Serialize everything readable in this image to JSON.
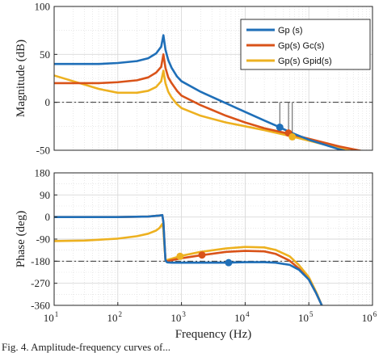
{
  "caption_fragment": "Fig. 4. Amplitude-frequency curves of...",
  "colors": {
    "gp": "#1f6fb8",
    "gpgc": "#d95319",
    "gppid": "#edb120",
    "grid": "#d9d9d9",
    "refline": "#333333"
  },
  "chart_data": [
    {
      "type": "line",
      "xscale": "log",
      "xlim": [
        10,
        1000000
      ],
      "ylim": [
        -50,
        100
      ],
      "ylabel": "Magnitude (dB)",
      "yticks": [
        -50,
        0,
        50,
        100
      ],
      "ytick_labels": [
        "-50",
        "0",
        "50",
        "100"
      ],
      "reference_line_y": 0,
      "grid": true,
      "legend_position": "top-right",
      "series": [
        {
          "name": "Gp (s)",
          "color_key": "gp",
          "x": [
            10,
            50,
            100,
            200,
            300,
            400,
            480,
            520,
            560,
            620,
            700,
            850,
            1000,
            2000,
            5000,
            10000,
            20000,
            35000,
            50000,
            100000,
            300000,
            1000000
          ],
          "y": [
            40,
            40,
            41,
            43,
            46,
            51,
            58,
            70,
            55,
            44,
            36,
            27,
            22,
            11,
            -1,
            -10,
            -19,
            -26,
            -31,
            -39,
            -49,
            -58
          ]
        },
        {
          "name": "Gp(s) Gc(s)",
          "color_key": "gpgc",
          "x": [
            10,
            50,
            100,
            200,
            300,
            400,
            480,
            520,
            560,
            620,
            700,
            850,
            1000,
            2000,
            5000,
            10000,
            20000,
            50000,
            100000,
            300000,
            1000000
          ],
          "y": [
            20,
            20,
            21,
            23,
            26,
            31,
            37,
            50,
            36,
            26,
            20,
            12,
            7,
            -3,
            -14,
            -21,
            -27,
            -33,
            -38,
            -46,
            -53
          ]
        },
        {
          "name": "Gp(s) Gpid(s)",
          "color_key": "gppid",
          "x": [
            10,
            20,
            50,
            100,
            200,
            300,
            400,
            480,
            520,
            560,
            620,
            700,
            850,
            1000,
            2000,
            5000,
            10000,
            20000,
            50000,
            100000,
            300000,
            1000000
          ],
          "y": [
            28,
            22,
            14,
            10,
            10,
            12,
            16,
            22,
            33,
            20,
            11,
            5,
            -2,
            -6,
            -14,
            -21,
            -25,
            -29,
            -35,
            -40,
            -48,
            -56
          ]
        }
      ],
      "markers": [
        {
          "series_color_key": "gp",
          "x": 35000,
          "y": -26
        },
        {
          "series_color_key": "gpgc",
          "x": 48000,
          "y": -32
        },
        {
          "series_color_key": "gppid",
          "x": 55000,
          "y": -36
        }
      ]
    },
    {
      "type": "line",
      "xscale": "log",
      "xlim": [
        10,
        1000000
      ],
      "ylim": [
        -360,
        180
      ],
      "xlabel": "Frequency (Hz)",
      "ylabel": "Phase (deg)",
      "yticks": [
        -360,
        -270,
        -180,
        -90,
        0,
        90,
        180
      ],
      "ytick_labels": [
        "-360",
        "-270",
        "-180",
        "-90",
        "0",
        "90",
        "180"
      ],
      "xticks": [
        10,
        100,
        1000,
        10000,
        100000,
        1000000
      ],
      "xtick_labels": [
        {
          "base": "10",
          "exp": "1"
        },
        {
          "base": "10",
          "exp": "2"
        },
        {
          "base": "10",
          "exp": "3"
        },
        {
          "base": "10",
          "exp": "4"
        },
        {
          "base": "10",
          "exp": "5"
        },
        {
          "base": "10",
          "exp": "6"
        }
      ],
      "reference_line_y": -180,
      "grid": true,
      "series": [
        {
          "name": "Gp (s)",
          "color_key": "gp",
          "x": [
            10,
            100,
            300,
            450,
            500,
            520,
            540,
            560,
            580,
            600,
            700,
            1000,
            2000,
            5000,
            10000,
            20000,
            30000,
            50000,
            70000,
            100000,
            130000,
            160000
          ],
          "y": [
            0,
            0,
            2,
            6,
            8,
            -20,
            -100,
            -175,
            -182,
            -185,
            -186,
            -186,
            -186,
            -186,
            -184,
            -184,
            -186,
            -195,
            -215,
            -255,
            -310,
            -360
          ]
        },
        {
          "name": "Gp(s) Gc(s)",
          "color_key": "gpgc",
          "x": [
            10,
            100,
            300,
            450,
            500,
            520,
            540,
            560,
            580,
            600,
            700,
            1000,
            2000,
            5000,
            10000,
            20000,
            30000,
            50000,
            70000,
            100000,
            130000,
            160000
          ],
          "y": [
            0,
            0,
            2,
            6,
            8,
            -20,
            -100,
            -175,
            -180,
            -180,
            -176,
            -168,
            -156,
            -142,
            -138,
            -140,
            -150,
            -178,
            -210,
            -255,
            -310,
            -360
          ]
        },
        {
          "name": "Gp(s) Gpid(s)",
          "color_key": "gppid",
          "x": [
            10,
            30,
            100,
            200,
            300,
            400,
            450,
            480,
            500,
            520,
            540,
            560,
            580,
            600,
            700,
            1000,
            2000,
            5000,
            10000,
            20000,
            30000,
            50000,
            70000,
            100000,
            130000,
            160000
          ],
          "y": [
            -98,
            -96,
            -88,
            -78,
            -68,
            -55,
            -45,
            -35,
            -28,
            -50,
            -120,
            -172,
            -175,
            -175,
            -170,
            -158,
            -142,
            -128,
            -122,
            -124,
            -134,
            -160,
            -196,
            -245,
            -305,
            -360
          ]
        }
      ],
      "markers": [
        {
          "series_color_key": "gp",
          "x": 5500,
          "y": -186
        },
        {
          "series_color_key": "gpgc",
          "x": 2100,
          "y": -155
        },
        {
          "series_color_key": "gppid",
          "x": 950,
          "y": -160
        }
      ]
    }
  ]
}
